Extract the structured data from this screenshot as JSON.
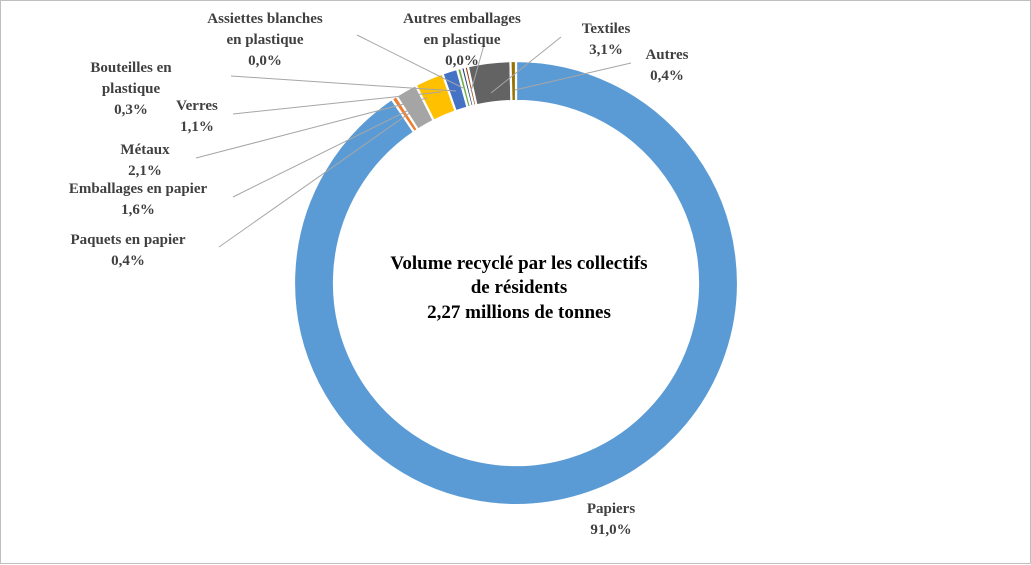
{
  "chart_data": {
    "type": "doughnut",
    "center_text": [
      "Volume recyclé par les collectifs",
      "de résidents",
      "2,27 millions de tonnes"
    ],
    "slices": [
      {
        "name": "Papiers",
        "value": 91.0,
        "label": "91,0%",
        "color": "#5B9BD5"
      },
      {
        "name": "Paquets en papier",
        "value": 0.4,
        "label": "0,4%",
        "color": "#ED7D31"
      },
      {
        "name": "Emballages en papier",
        "value": 1.6,
        "label": "1,6%",
        "color": "#A5A5A5"
      },
      {
        "name": "Métaux",
        "value": 2.1,
        "label": "2,1%",
        "color": "#FFC000"
      },
      {
        "name": "Verres",
        "value": 1.1,
        "label": "1,1%",
        "color": "#4472C4"
      },
      {
        "name": "Bouteilles en plastique",
        "value": 0.3,
        "label": "0,3%",
        "color": "#70AD47"
      },
      {
        "name": "Assiettes blanches en plastique",
        "value": 0.0,
        "label": "0,0%",
        "color": "#264478"
      },
      {
        "name": "Autres emballages en plastique",
        "value": 0.0,
        "label": "0,0%",
        "color": "#9E480E"
      },
      {
        "name": "Textiles",
        "value": 3.1,
        "label": "3,1%",
        "color": "#636363"
      },
      {
        "name": "Autres",
        "value": 0.4,
        "label": "0,4%",
        "color": "#997300"
      }
    ]
  }
}
